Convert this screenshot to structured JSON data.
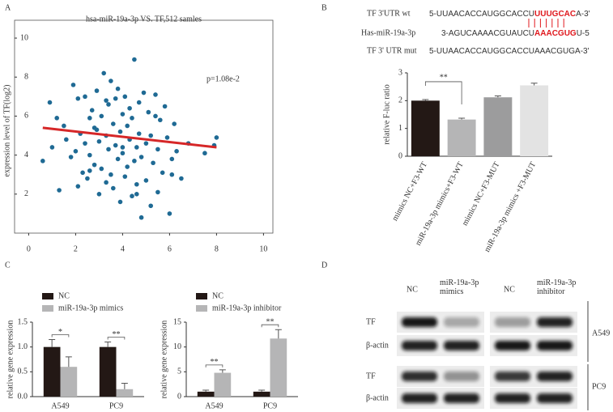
{
  "panels": [
    "A",
    "B",
    "C",
    "D"
  ],
  "sequences": {
    "wt": {
      "label": "TF 3'UTR wt",
      "parts": [
        "5-UUAACACCAUGGCACCU",
        "UUUGCAC",
        "A-3'"
      ]
    },
    "mir": {
      "label": "Has-miR-19a-3p",
      "parts": [
        "3-AGUCAAAACGUAUCU",
        "AAACGUG",
        "U-5"
      ]
    },
    "mut": {
      "label": "TF 3' UTR mut",
      "parts": [
        "5-UUAACACCAUGGCACCUAAACGUGA-3'"
      ]
    },
    "highlight_color": "#e0191e"
  },
  "blot": {
    "columns": [
      "NC",
      "miR-19a-3p mimics",
      "NC",
      "miR-19a-3p inhibitor"
    ],
    "rows": [
      "TF",
      "β-actin",
      "TF",
      "β-actin"
    ],
    "cell_lines": [
      "A549",
      "PC9"
    ]
  },
  "chart_data": [
    {
      "type": "scatter",
      "title": "hsa-miR-19a-3p VS. TF,512 samles",
      "ylabel": "expression level of TF(log2)",
      "annotation": "p=1.08e-2",
      "color": "#1f6a94",
      "x": [
        0.6,
        0.9,
        1.0,
        1.3,
        1.5,
        1.6,
        1.8,
        1.9,
        2.0,
        2.1,
        2.1,
        2.2,
        2.3,
        2.4,
        2.4,
        2.5,
        2.6,
        2.6,
        2.7,
        2.8,
        2.8,
        2.9,
        3.0,
        3.0,
        3.1,
        3.1,
        3.2,
        3.3,
        3.3,
        3.4,
        3.4,
        3.5,
        3.5,
        3.6,
        3.6,
        3.7,
        3.7,
        3.8,
        3.8,
        3.9,
        3.9,
        4.0,
        4.0,
        4.1,
        4.1,
        4.2,
        4.2,
        4.3,
        4.3,
        4.4,
        4.4,
        4.5,
        4.5,
        4.6,
        4.6,
        4.7,
        4.7,
        4.8,
        4.8,
        4.9,
        5.0,
        5.0,
        5.1,
        5.2,
        5.2,
        5.3,
        5.4,
        5.5,
        5.5,
        5.6,
        5.7,
        5.8,
        5.9,
        6.0,
        6.1,
        6.2,
        6.3,
        6.5,
        6.8,
        7.5,
        7.9,
        8.0,
        1.2,
        2.6,
        3.3,
        4.0,
        4.6,
        5.4,
        6.1,
        2.9
      ],
      "y": [
        3.7,
        6.7,
        4.4,
        2.2,
        5.5,
        4.8,
        3.9,
        7.6,
        4.2,
        6.9,
        2.4,
        5.1,
        3.1,
        7.0,
        4.6,
        2.8,
        5.9,
        4.0,
        6.3,
        3.5,
        5.4,
        7.3,
        2.0,
        4.7,
        6.0,
        3.3,
        8.2,
        5.0,
        2.6,
        6.6,
        4.3,
        7.8,
        3.0,
        5.6,
        2.3,
        6.9,
        4.5,
        3.8,
        7.4,
        5.2,
        1.6,
        6.1,
        4.1,
        2.9,
        7.0,
        5.5,
        3.4,
        6.4,
        4.8,
        1.9,
        5.9,
        3.7,
        8.9,
        4.4,
        2.5,
        6.7,
        5.1,
        0.8,
        3.9,
        7.2,
        4.6,
        2.7,
        6.2,
        5.0,
        1.4,
        3.6,
        7.1,
        4.3,
        2.1,
        5.8,
        3.1,
        6.5,
        4.9,
        1.0,
        3.8,
        5.6,
        4.2,
        2.8,
        4.6,
        4.1,
        4.5,
        4.9,
        5.9,
        3.2,
        6.8,
        4.4,
        2.0,
        6.0,
        3.0,
        5.3
      ],
      "trend_line": {
        "x": [
          0.6,
          8
        ],
        "y": [
          5.4,
          4.4
        ],
        "color": "#d62728"
      },
      "xlim": [
        -0.6,
        10.4
      ],
      "xticks": [
        0,
        2,
        4,
        6,
        8,
        10
      ],
      "ylim": [
        0,
        10.5
      ],
      "yticks": [
        2,
        4,
        6,
        8,
        10
      ]
    },
    {
      "type": "bar",
      "ylabel": "relative F-luc ratio",
      "annotation": "**",
      "categories": [
        "mimics NC+F3-WT",
        "miR-19a-3p mimics+F3-WT",
        "mimics NC+F3-MUT",
        "miR-19a-3p mimics +F3-MUT"
      ],
      "values": [
        2.0,
        1.32,
        2.12,
        2.55
      ],
      "errors": [
        0.04,
        0.05,
        0.05,
        0.08
      ],
      "colors": [
        "#231815",
        "#b5b5b6",
        "#9c9c9d",
        "#e3e3e3"
      ],
      "ylim": [
        0,
        3
      ],
      "yticks": [
        0,
        1,
        2,
        3
      ]
    },
    {
      "type": "grouped_bar",
      "ylabel": "relative gene expression",
      "categories": [
        "A549",
        "PC9"
      ],
      "significance": [
        "*",
        "**"
      ],
      "series": [
        {
          "name": "NC",
          "color": "#231815",
          "values": [
            1.0,
            1.0
          ],
          "errors": [
            0.15,
            0.1
          ]
        },
        {
          "name": "miR-19a-3p mimics",
          "color": "#b5b5b6",
          "values": [
            0.6,
            0.15
          ],
          "errors": [
            0.2,
            0.12
          ]
        }
      ],
      "ylim": [
        0,
        1.5
      ],
      "yticks": [
        {
          "value": 0,
          "label": "0.0"
        },
        0.5,
        {
          "value": 1,
          "label": "1.0"
        },
        1.5
      ]
    },
    {
      "type": "grouped_bar",
      "ylabel": "relative gene expression",
      "categories": [
        "A549",
        "PC9"
      ],
      "significance": [
        "**",
        "**"
      ],
      "series": [
        {
          "name": "NC",
          "color": "#231815",
          "values": [
            1.0,
            1.0
          ],
          "errors": [
            0.3,
            0.3
          ]
        },
        {
          "name": "miR-19a-3p inhibitor",
          "color": "#b5b5b6",
          "values": [
            4.8,
            11.7
          ],
          "errors": [
            0.6,
            1.8
          ]
        }
      ],
      "ylim": [
        0,
        15
      ],
      "yticks": [
        0,
        5,
        10,
        15
      ]
    }
  ]
}
